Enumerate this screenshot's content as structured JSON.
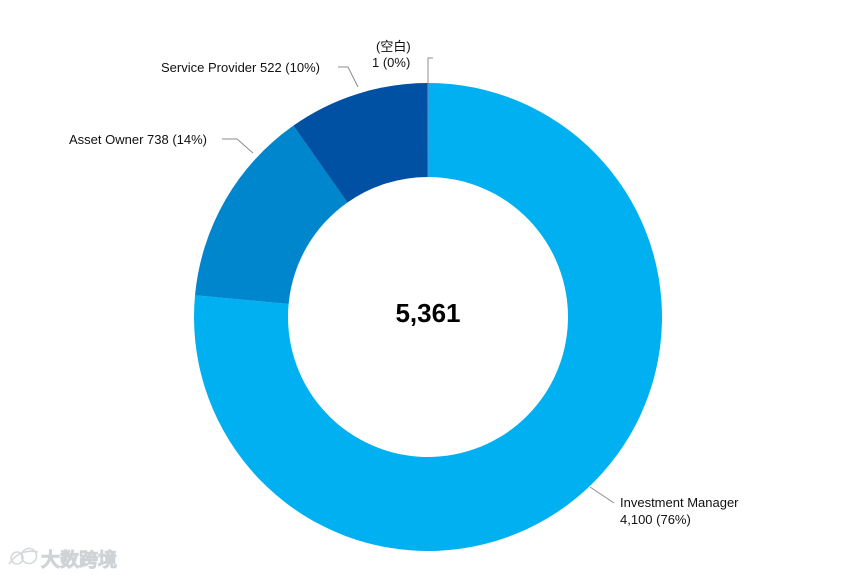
{
  "chart_data": {
    "type": "pie",
    "variant": "donut",
    "center_total": "5,361",
    "slices": [
      {
        "name": "Investment Manager",
        "value": 4100,
        "percent": "76%",
        "value_label": "4,100",
        "color": "#00b0f0"
      },
      {
        "name": "Asset Owner",
        "value": 738,
        "percent": "14%",
        "value_label": "738",
        "color": "#0086cd"
      },
      {
        "name": "Service Provider",
        "value": 522,
        "percent": "10%",
        "value_label": "522",
        "color": "#0050a4"
      },
      {
        "name": "(空白)",
        "value": 1,
        "percent": "0%",
        "value_label": "1",
        "color": "#5a8fc7"
      }
    ],
    "labels": {
      "investment_manager": {
        "line1": "Investment Manager",
        "line2": "4,100 (76%)"
      },
      "asset_owner": "Asset Owner 738 (14%)",
      "service_provider": "Service Provider 522 (10%)",
      "blank": {
        "line1": "(空白)",
        "line2": "1 (0%)"
      }
    },
    "legend": "none"
  },
  "watermark": {
    "text": "大数跨境",
    "icon": "brand-logo-icon"
  }
}
